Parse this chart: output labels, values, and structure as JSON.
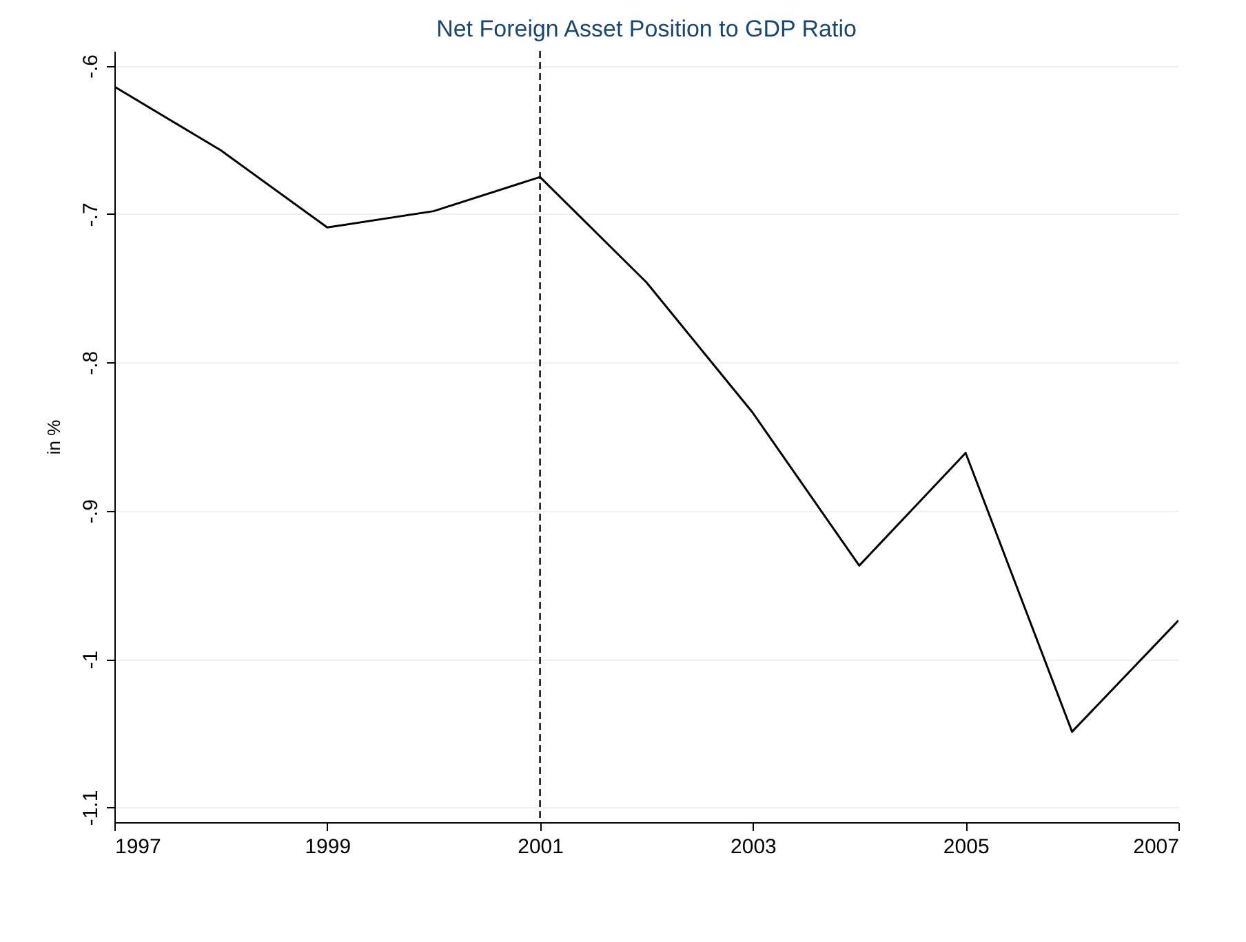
{
  "chart_data": {
    "type": "line",
    "title": "Net Foreign Asset Position to GDP Ratio",
    "ylabel": "in %",
    "x": [
      1997,
      1998,
      1999,
      2000,
      2001,
      2002,
      2003,
      2004,
      2005,
      2006,
      2007
    ],
    "series": [
      {
        "color": "#000000",
        "values": [
          -0.614,
          -0.657,
          -0.709,
          -0.698,
          -0.675,
          -0.746,
          -0.834,
          -0.937,
          -0.861,
          -1.049,
          -0.974
        ]
      }
    ],
    "xlim": [
      1997,
      2007
    ],
    "xticks": [
      1997,
      1999,
      2001,
      2003,
      2005,
      2007
    ],
    "ylim": [
      -1.11,
      -0.59
    ],
    "yticks": [
      {
        "value": -1.1,
        "label": "-1.1"
      },
      {
        "value": -1,
        "label": "-1"
      },
      {
        "value": -0.9,
        "label": "-.9"
      },
      {
        "value": -0.8,
        "label": "-.8"
      },
      {
        "value": -0.7,
        "label": "-.7"
      },
      {
        "value": -0.6,
        "label": "-.6"
      }
    ],
    "grid": "y",
    "marker": "none",
    "line_style": "solid",
    "ref_lines": [
      {
        "axis": "x",
        "value": 2001,
        "line_style": "dashed",
        "color": "#000000"
      }
    ]
  }
}
